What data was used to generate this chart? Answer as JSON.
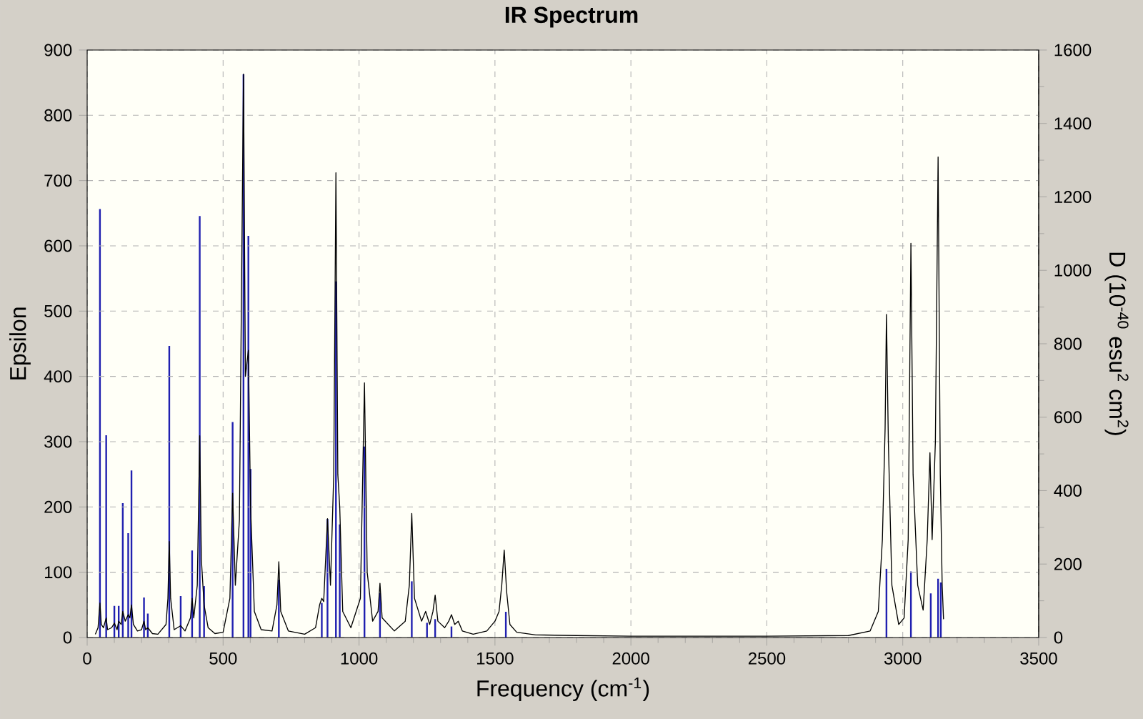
{
  "chart_data": {
    "type": "line",
    "title": "IR Spectrum",
    "xlabel": "Frequency (cm$^{-1}$)",
    "ylabel": "Epsilon",
    "y2label": "D (10$^{-40}$ esu$^{2}$ cm$^{2}$)",
    "xlim": [
      0,
      3500
    ],
    "ylim": [
      0,
      900
    ],
    "y2lim": [
      0,
      1600
    ],
    "xticks": [
      0,
      500,
      1000,
      1500,
      2000,
      2500,
      3000,
      3500
    ],
    "yticks": [
      0,
      100,
      200,
      300,
      400,
      500,
      600,
      700,
      800,
      900
    ],
    "y2ticks": [
      0,
      200,
      400,
      600,
      800,
      1000,
      1200,
      1400,
      1600
    ],
    "grid": true,
    "series": [
      {
        "color": "#000000",
        "x": [
          30,
          40,
          47,
          52,
          60,
          70,
          75,
          90,
          100,
          110,
          116,
          125,
          131,
          140,
          151,
          157,
          163,
          170,
          185,
          200,
          209,
          215,
          223,
          240,
          260,
          290,
          297,
          302,
          307,
          320,
          344,
          360,
          380,
          386,
          392,
          405,
          414,
          420,
          430,
          445,
          470,
          500,
          525,
          535,
          545,
          560,
          575,
          582,
          593,
          601,
          615,
          640,
          680,
          698,
          705,
          712,
          740,
          800,
          840,
          855,
          863,
          870,
          884,
          895,
          907,
          915,
          922,
          929,
          940,
          970,
          1005,
          1020,
          1030,
          1050,
          1070,
          1077,
          1085,
          1130,
          1170,
          1185,
          1194,
          1204,
          1230,
          1245,
          1260,
          1272,
          1280,
          1290,
          1315,
          1330,
          1340,
          1352,
          1365,
          1380,
          1420,
          1470,
          1500,
          1515,
          1525,
          1534,
          1543,
          1555,
          1580,
          1650,
          1800,
          2000,
          2500,
          2800,
          2880,
          2910,
          2925,
          2935,
          2940,
          2947,
          2960,
          2985,
          3005,
          3020,
          3030,
          3038,
          3055,
          3075,
          3090,
          3100,
          3108,
          3120,
          3130,
          3138,
          3145,
          3150
        ],
        "values": [
          5,
          15,
          53,
          20,
          15,
          30,
          12,
          15,
          22,
          12,
          25,
          20,
          40,
          25,
          35,
          30,
          50,
          20,
          10,
          12,
          25,
          12,
          15,
          6,
          5,
          20,
          60,
          147,
          60,
          12,
          18,
          10,
          30,
          60,
          30,
          80,
          309,
          120,
          50,
          15,
          6,
          8,
          60,
          221,
          80,
          180,
          863,
          400,
          440,
          200,
          40,
          12,
          10,
          50,
          116,
          40,
          10,
          5,
          15,
          50,
          60,
          55,
          182,
          80,
          250,
          712,
          250,
          200,
          40,
          15,
          60,
          390,
          100,
          25,
          40,
          83,
          30,
          10,
          25,
          80,
          190,
          60,
          25,
          40,
          20,
          40,
          65,
          25,
          15,
          25,
          35,
          20,
          25,
          10,
          5,
          10,
          25,
          40,
          80,
          134,
          70,
          20,
          8,
          4,
          3,
          2,
          2,
          3,
          10,
          40,
          150,
          320,
          495,
          300,
          80,
          20,
          30,
          150,
          604,
          250,
          80,
          42,
          150,
          283,
          150,
          300,
          736,
          250,
          80,
          28
        ]
      },
      {
        "type": "bar",
        "axis": "y2",
        "color": "#2020b0",
        "x": [
          47,
          70,
          100,
          116,
          131,
          151,
          163,
          209,
          223,
          302,
          344,
          386,
          414,
          430,
          535,
          575,
          593,
          601,
          705,
          863,
          884,
          915,
          929,
          1020,
          1077,
          1194,
          1250,
          1280,
          1340,
          1540,
          2940,
          3030,
          3103,
          3130,
          3140
        ],
        "values": [
          1167,
          551,
          86,
          86,
          366,
          284,
          455,
          109,
          65,
          794,
          113,
          237,
          1148,
          140,
          587,
          1534,
          1094,
          459,
          157,
          94,
          323,
          970,
          308,
          520,
          121,
          153,
          40,
          50,
          30,
          70,
          187,
          180,
          120,
          160,
          150
        ]
      }
    ]
  }
}
